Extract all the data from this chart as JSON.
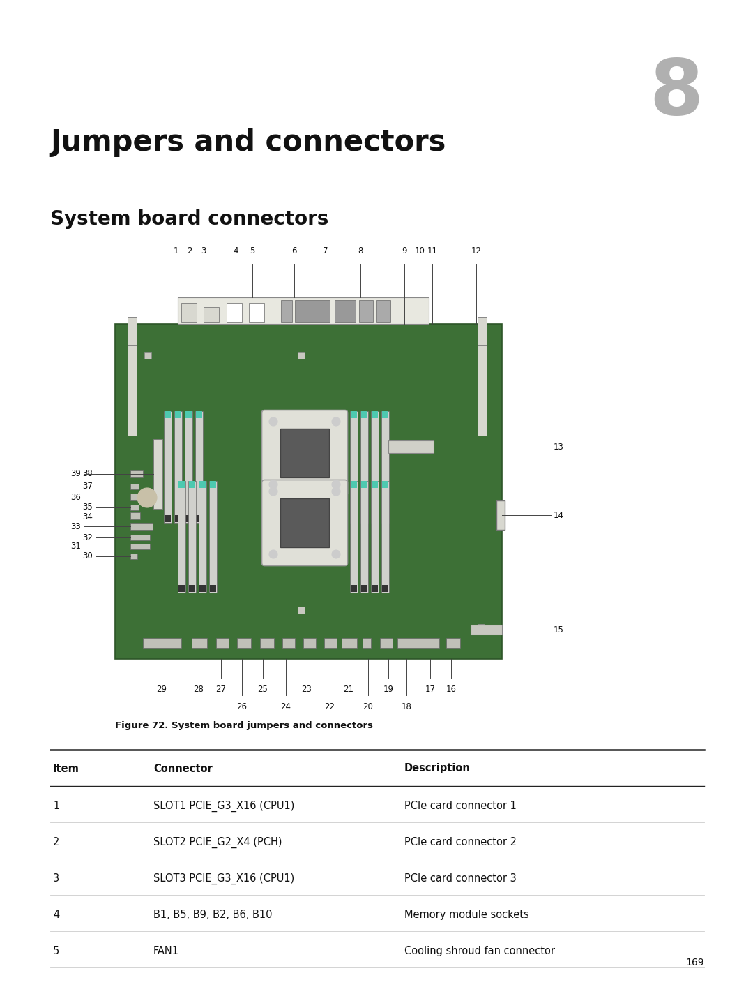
{
  "page_number": "169",
  "chapter_number": "8",
  "chapter_title": "Jumpers and connectors",
  "section_title": "System board connectors",
  "figure_caption": "Figure 72. System board jumpers and connectors",
  "background_color": "#ffffff",
  "board_color": "#3d7036",
  "board_dark": "#2d5528",
  "teal_color": "#4ec9b0",
  "cpu_socket_color": "#e8e8e0",
  "cpu_chip_color": "#5a5a5a",
  "slot_color": "#d0d0cc",
  "slot_dark": "#222222",
  "connector_color": "#bbbbbb",
  "io_bg": "#e8e8e0",
  "line_color": "#444444",
  "table_headers": [
    "Item",
    "Connector",
    "Description"
  ],
  "table_rows": [
    [
      "1",
      "SLOT1 PCIE_G3_X16 (CPU1)",
      "PCIe card connector 1"
    ],
    [
      "2",
      "SLOT2 PCIE_G2_X4 (PCH)",
      "PCIe card connector 2"
    ],
    [
      "3",
      "SLOT3 PCIE_G3_X16 (CPU1)",
      "PCIe card connector 3"
    ],
    [
      "4",
      "B1, B5, B9, B2, B6, B10",
      "Memory module sockets"
    ],
    [
      "5",
      "FAN1",
      "Cooling shroud fan connector"
    ]
  ]
}
